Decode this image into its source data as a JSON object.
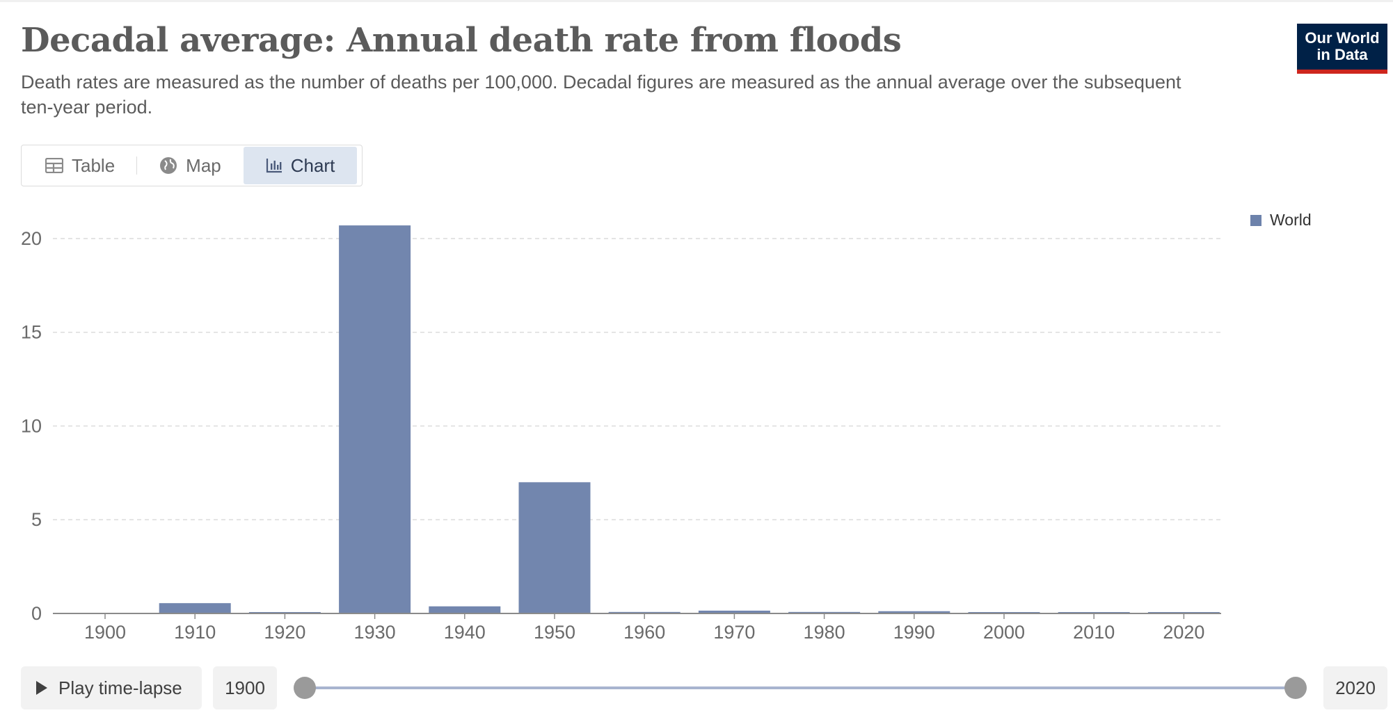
{
  "header": {
    "title": "Decadal average: Annual death rate from floods",
    "subtitle": "Death rates are measured as the number of deaths per 100,000. Decadal figures are measured as the annual average over the subsequent ten-year period."
  },
  "logo": {
    "line1": "Our World",
    "line2": "in Data"
  },
  "tabs": [
    {
      "label": "Table",
      "icon": "table-icon"
    },
    {
      "label": "Map",
      "icon": "globe-icon"
    },
    {
      "label": "Chart",
      "icon": "bar-chart-icon",
      "active": true
    }
  ],
  "legend": {
    "label": "World",
    "color": "#6d82ab"
  },
  "chart_data": {
    "type": "bar",
    "categories": [
      "1900",
      "1910",
      "1920",
      "1930",
      "1940",
      "1950",
      "1960",
      "1970",
      "1980",
      "1990",
      "2000",
      "2010",
      "2020"
    ],
    "series": [
      {
        "name": "World",
        "values": [
          0.0,
          0.55,
          0.02,
          20.7,
          0.38,
          7.0,
          0.08,
          0.15,
          0.08,
          0.12,
          0.06,
          0.04,
          0.05
        ]
      }
    ],
    "yticks": [
      0,
      5,
      10,
      15,
      20
    ],
    "ylim": [
      0,
      21
    ],
    "grid": true,
    "legend_position": "top-right",
    "bar_color": "#7286ae"
  },
  "timeline": {
    "play_label": "Play time-lapse",
    "start_year": "1900",
    "end_year": "2020"
  }
}
